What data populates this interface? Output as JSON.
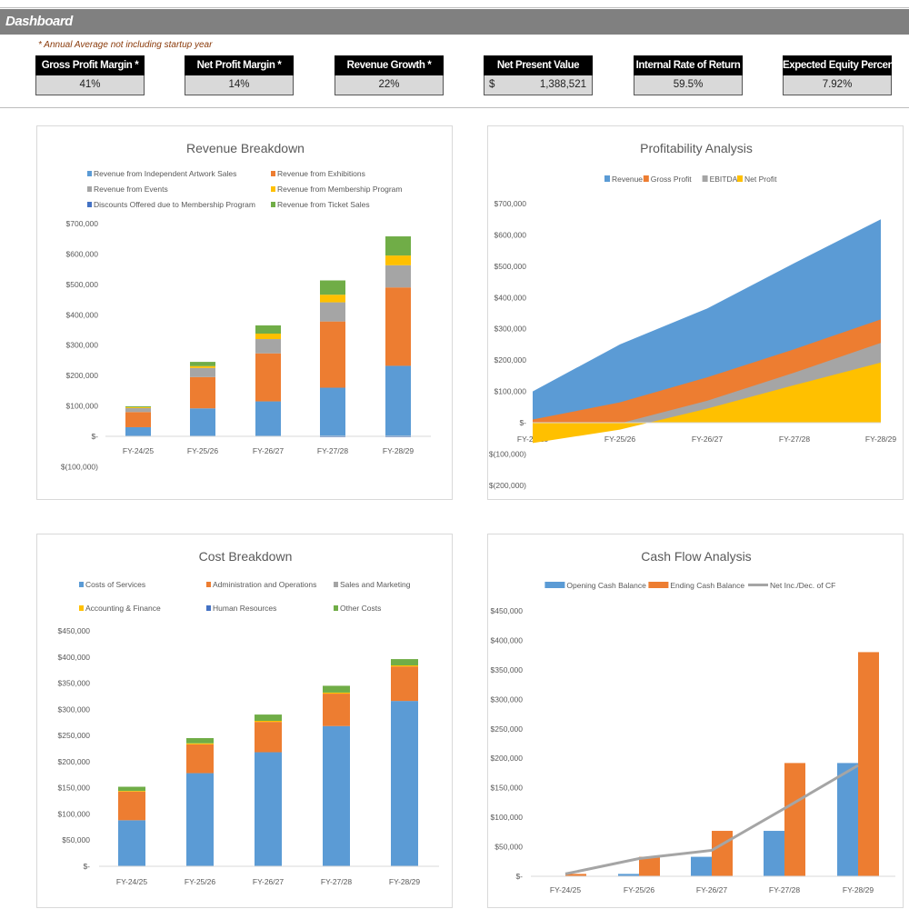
{
  "header": {
    "title": "Dashboard",
    "note": "* Annual Average not including startup year"
  },
  "kpis": [
    {
      "label": "Gross Profit Margin *",
      "value": "41%"
    },
    {
      "label": "Net Profit Margin *",
      "value": "14%"
    },
    {
      "label": "Revenue Growth *",
      "value": "22%"
    },
    {
      "label": "Net Present Value",
      "currency": "$",
      "value": "1,388,521"
    },
    {
      "label": "Internal Rate of Return",
      "value": "59.5%"
    },
    {
      "label": "Expected Equity Percentage",
      "value": "7.92%"
    }
  ],
  "chart_data": [
    {
      "id": "revenue",
      "type": "bar",
      "stacked": true,
      "title": "Revenue Breakdown",
      "categories": [
        "FY-24/25",
        "FY-25/26",
        "FY-26/27",
        "FY-27/28",
        "FY-28/29"
      ],
      "ylim": [
        -100000,
        700000
      ],
      "yticks": [
        "$(100,000)",
        "$-",
        "$100,000",
        "$200,000",
        "$300,000",
        "$400,000",
        "$500,000",
        "$600,000",
        "$700,000"
      ],
      "legend_position": "top",
      "series": [
        {
          "name": "Revenue from Independent Artwork Sales",
          "color": "#5b9bd5",
          "values": [
            30000,
            92000,
            115000,
            160000,
            232000
          ]
        },
        {
          "name": "Revenue from Exhibitions",
          "color": "#ed7d31",
          "values": [
            50000,
            103000,
            158000,
            218000,
            258000
          ]
        },
        {
          "name": "Revenue from Events",
          "color": "#a5a5a5",
          "values": [
            13000,
            30000,
            47000,
            63000,
            73000
          ]
        },
        {
          "name": "Revenue from Membership Program",
          "color": "#ffc000",
          "values": [
            3000,
            6000,
            18000,
            25000,
            32000
          ]
        },
        {
          "name": "Discounts Offered due to Membership Program",
          "color": "#4472c4",
          "values": [
            0,
            0,
            0,
            -3000,
            -3000
          ]
        },
        {
          "name": "Revenue from Ticket Sales",
          "color": "#70ad47",
          "values": [
            3000,
            14000,
            27000,
            47000,
            63000
          ]
        }
      ]
    },
    {
      "id": "profit",
      "type": "area",
      "title": "Profitability Analysis",
      "categories": [
        "FY-24/25",
        "FY-25/26",
        "FY-26/27",
        "FY-27/28",
        "FY-28/29"
      ],
      "ylim": [
        -200000,
        700000
      ],
      "yticks": [
        "$(200,000)",
        "$(100,000)",
        "$-",
        "$100,000",
        "$200,000",
        "$300,000",
        "$400,000",
        "$500,000",
        "$600,000",
        "$700,000"
      ],
      "legend_position": "top",
      "series": [
        {
          "name": "Revenue",
          "color": "#5b9bd5",
          "values": [
            100000,
            250000,
            365000,
            510000,
            650000
          ]
        },
        {
          "name": "Gross Profit",
          "color": "#ed7d31",
          "values": [
            10000,
            65000,
            145000,
            235000,
            330000
          ]
        },
        {
          "name": "EBITDA",
          "color": "#a5a5a5",
          "values": [
            -60000,
            -2000,
            70000,
            160000,
            255000
          ]
        },
        {
          "name": "Net Profit",
          "color": "#ffc000",
          "values": [
            -65000,
            -22000,
            45000,
            120000,
            192000
          ]
        }
      ]
    },
    {
      "id": "cost",
      "type": "bar",
      "stacked": true,
      "title": "Cost Breakdown",
      "categories": [
        "FY-24/25",
        "FY-25/26",
        "FY-26/27",
        "FY-27/28",
        "FY-28/29"
      ],
      "ylim": [
        0,
        450000
      ],
      "yticks": [
        "$-",
        "$50,000",
        "$100,000",
        "$150,000",
        "$200,000",
        "$250,000",
        "$300,000",
        "$350,000",
        "$400,000",
        "$450,000"
      ],
      "legend_position": "top",
      "series": [
        {
          "name": "Costs of Services",
          "color": "#5b9bd5",
          "values": [
            88000,
            178000,
            218000,
            268000,
            316000
          ]
        },
        {
          "name": "Administration and Operations",
          "color": "#ed7d31",
          "values": [
            55000,
            55000,
            58000,
            62000,
            66000
          ]
        },
        {
          "name": "Sales and Marketing",
          "color": "#a5a5a5",
          "values": [
            0,
            0,
            0,
            0,
            0
          ]
        },
        {
          "name": "Accounting & Finance",
          "color": "#ffc000",
          "values": [
            1000,
            2000,
            2000,
            2000,
            2000
          ]
        },
        {
          "name": "Human Resources",
          "color": "#4472c4",
          "values": [
            0,
            0,
            0,
            0,
            0
          ]
        },
        {
          "name": "Other Costs",
          "color": "#70ad47",
          "values": [
            8000,
            10000,
            12000,
            13000,
            12000
          ]
        }
      ]
    },
    {
      "id": "cash",
      "type": "bar+line",
      "title": "Cash Flow Analysis",
      "categories": [
        "FY-24/25",
        "FY-25/26",
        "FY-26/27",
        "FY-27/28",
        "FY-28/29"
      ],
      "ylim": [
        0,
        450000
      ],
      "yticks": [
        "$-",
        "$50,000",
        "$100,000",
        "$150,000",
        "$200,000",
        "$250,000",
        "$300,000",
        "$350,000",
        "$400,000",
        "$450,000"
      ],
      "legend_position": "top",
      "series": [
        {
          "name": "Opening Cash Balance",
          "color": "#5b9bd5",
          "kind": "bar",
          "values": [
            0,
            4000,
            33000,
            77000,
            192000
          ]
        },
        {
          "name": "Ending Cash Balance",
          "color": "#ed7d31",
          "kind": "bar",
          "values": [
            4000,
            33000,
            77000,
            192000,
            380000
          ]
        },
        {
          "name": "Net Inc./Dec. of CF",
          "color": "#a5a5a5",
          "kind": "line",
          "values": [
            4000,
            30000,
            44000,
            115000,
            188000
          ]
        }
      ]
    }
  ]
}
